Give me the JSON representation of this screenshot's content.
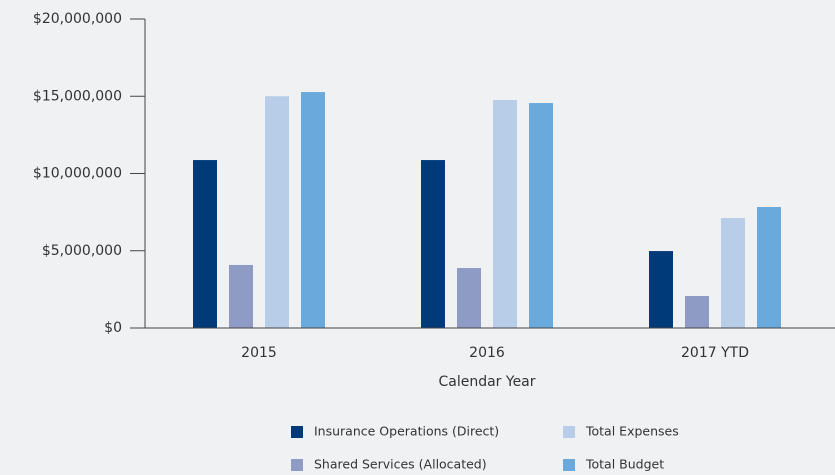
{
  "chart_data": {
    "type": "bar",
    "x_label": "Calendar Year",
    "categories": [
      "2015",
      "2016",
      "2017 YTD"
    ],
    "series": [
      {
        "name": "Insurance Operations (Direct)",
        "color": "#003a78",
        "values": [
          10870000,
          10870000,
          4980000
        ]
      },
      {
        "name": "Shared Services (Allocated)",
        "color": "#8e9bc4",
        "values": [
          4080000,
          3880000,
          2070000
        ]
      },
      {
        "name": "Total Expenses",
        "color": "#b7cde8",
        "values": [
          15000000,
          14760000,
          7120000
        ]
      },
      {
        "name": "Total Budget",
        "color": "#6aa9dc",
        "values": [
          15270000,
          14560000,
          7830000
        ]
      }
    ],
    "ylim": [
      0,
      20000000
    ],
    "yticks": [
      {
        "value": 0,
        "label": "$0"
      },
      {
        "value": 5000000,
        "label": "$5,000,000"
      },
      {
        "value": 10000000,
        "label": "$10,000,000"
      },
      {
        "value": 15000000,
        "label": "$15,000,000"
      },
      {
        "value": 20000000,
        "label": "$20,000,000"
      }
    ],
    "legend": "bottom"
  }
}
